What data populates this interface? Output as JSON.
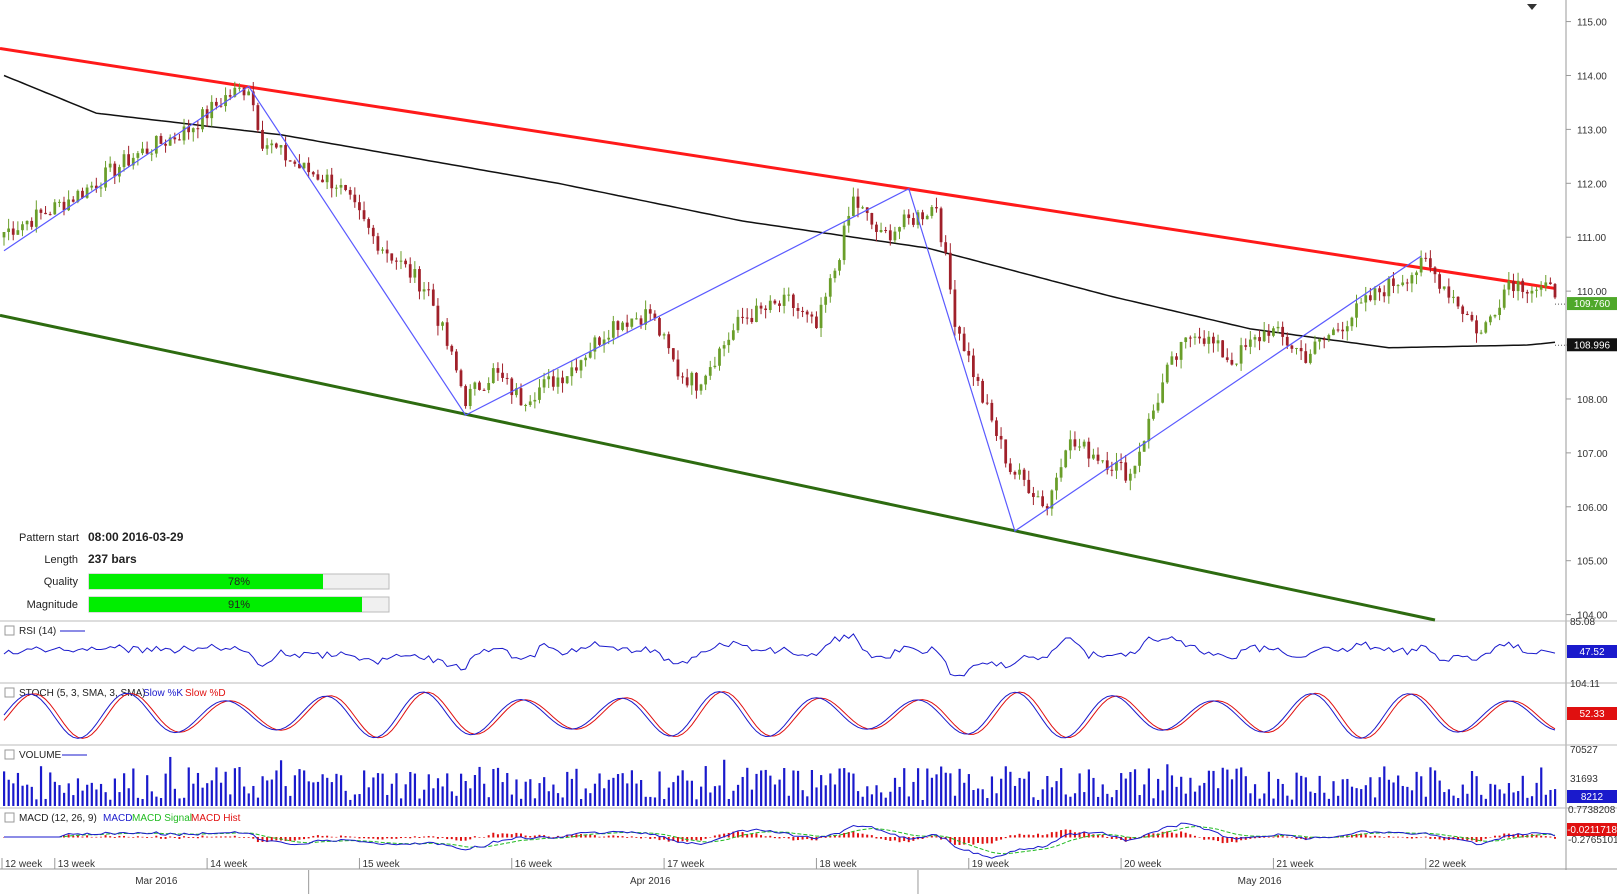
{
  "chart_data": {
    "type": "candlestick",
    "price_axis": {
      "ylim": [
        103.9,
        115.4
      ],
      "ticks": [
        "115.00",
        "114.00",
        "113.00",
        "112.00",
        "111.00",
        "110.00",
        "109.00",
        "108.00",
        "107.00",
        "106.00",
        "105.00",
        "104.00"
      ]
    },
    "last_price": "109.760",
    "ma_value": "108.996",
    "price_anchors": [
      [
        0,
        111.1
      ],
      [
        10,
        111.5
      ],
      [
        18,
        111.9
      ],
      [
        28,
        112.5
      ],
      [
        40,
        113.0
      ],
      [
        48,
        113.6
      ],
      [
        53,
        113.8
      ],
      [
        56,
        112.8
      ],
      [
        64,
        112.3
      ],
      [
        72,
        112.0
      ],
      [
        80,
        111.0
      ],
      [
        92,
        110.0
      ],
      [
        100,
        108.0
      ],
      [
        106,
        108.5
      ],
      [
        112,
        108.0
      ],
      [
        122,
        108.5
      ],
      [
        132,
        109.4
      ],
      [
        140,
        109.6
      ],
      [
        146,
        108.5
      ],
      [
        150,
        108.3
      ],
      [
        160,
        109.5
      ],
      [
        170,
        109.8
      ],
      [
        176,
        109.3
      ],
      [
        180,
        110.4
      ],
      [
        184,
        111.7
      ],
      [
        190,
        111.0
      ],
      [
        196,
        111.3
      ],
      [
        202,
        111.6
      ],
      [
        206,
        109.5
      ],
      [
        212,
        108.0
      ],
      [
        218,
        106.7
      ],
      [
        222,
        106.4
      ],
      [
        226,
        106.0
      ],
      [
        230,
        107.2
      ],
      [
        236,
        107.0
      ],
      [
        244,
        106.6
      ],
      [
        252,
        108.5
      ],
      [
        258,
        109.3
      ],
      [
        266,
        108.7
      ],
      [
        274,
        109.3
      ],
      [
        282,
        108.8
      ],
      [
        290,
        109.4
      ],
      [
        298,
        110.0
      ],
      [
        308,
        110.5
      ],
      [
        314,
        109.9
      ],
      [
        320,
        109.2
      ],
      [
        326,
        110.2
      ],
      [
        334,
        110.0
      ]
    ],
    "channel": {
      "upper": {
        "x": [
          0,
          336
        ],
        "y": [
          114.5,
          110.05
        ]
      },
      "lower": {
        "x": [
          0,
          310
        ],
        "y": [
          109.55,
          103.9
        ]
      }
    },
    "zigzag_points": [
      [
        0,
        110.75
      ],
      [
        53,
        113.8
      ],
      [
        100,
        107.7
      ],
      [
        196,
        111.9
      ],
      [
        219,
        105.55
      ],
      [
        307,
        110.65
      ]
    ],
    "moving_average_points": [
      [
        0,
        114.0
      ],
      [
        20,
        113.3
      ],
      [
        40,
        113.1
      ],
      [
        60,
        112.9
      ],
      [
        80,
        112.6
      ],
      [
        120,
        112.0
      ],
      [
        160,
        111.3
      ],
      [
        200,
        110.8
      ],
      [
        240,
        109.9
      ],
      [
        270,
        109.3
      ],
      [
        300,
        108.95
      ],
      [
        330,
        109.0
      ],
      [
        336,
        109.05
      ]
    ],
    "time_axis": {
      "weeks": [
        {
          "label": "12 week",
          "bar": 0
        },
        {
          "label": "13 week",
          "bar": 11
        },
        {
          "label": "14 week",
          "bar": 44
        },
        {
          "label": "15 week",
          "bar": 77
        },
        {
          "label": "16 week",
          "bar": 110
        },
        {
          "label": "17 week",
          "bar": 143
        },
        {
          "label": "18 week",
          "bar": 176
        },
        {
          "label": "19 week",
          "bar": 209
        },
        {
          "label": "20 week",
          "bar": 242
        },
        {
          "label": "21 week",
          "bar": 275
        },
        {
          "label": "22 week",
          "bar": 308
        }
      ],
      "months": [
        {
          "label": "Mar 2016",
          "bar": 33
        },
        {
          "label": "Apr 2016",
          "bar": 140
        },
        {
          "label": "May 2016",
          "bar": 272
        }
      ],
      "total_bars": 337
    },
    "rsi": {
      "label": "RSI (14)",
      "value": "47.52",
      "top_tick": "85.08",
      "ylim": [
        15,
        85
      ]
    },
    "stoch": {
      "label": "STOCH (5, 3, SMA, 3, SMA)",
      "k_label": "Slow %K",
      "d_label": "Slow %D",
      "value": "52.33",
      "top_tick": "104.11"
    },
    "volume": {
      "label": "VOLUME",
      "value": "8212",
      "ticks": [
        "70527",
        "31693"
      ]
    },
    "macd": {
      "label": "MACD (12, 26, 9)",
      "macd_label": "MACD",
      "signal_label": "MACD Signal",
      "hist_label": "MACD Hist",
      "value": "-0.0211718",
      "ticks": [
        "0.7738208",
        "-0.2765101"
      ]
    }
  },
  "pattern_info": {
    "pattern_start_label": "Pattern start",
    "pattern_start_value": "08:00 2016-03-29",
    "length_label": "Length",
    "length_value": "237 bars",
    "quality_label": "Quality",
    "quality_value": 78,
    "quality_text": "78%",
    "magnitude_label": "Magnitude",
    "magnitude_value": 91,
    "magnitude_text": "91%"
  },
  "colors": {
    "bull": "#6a9e2a",
    "bear": "#a0202a",
    "resistance": "#ff1a1a",
    "support": "#2d6b10",
    "zigzag": "#5a5aff",
    "ma": "#111111",
    "indicator_blue": "#1a1acc",
    "indicator_red": "#e01010",
    "signal_green": "#22bb22",
    "badge_green": "#4fa82a",
    "badge_blue": "#1a1acc",
    "badge_red": "#e01010",
    "progress_green": "#00ee00"
  }
}
